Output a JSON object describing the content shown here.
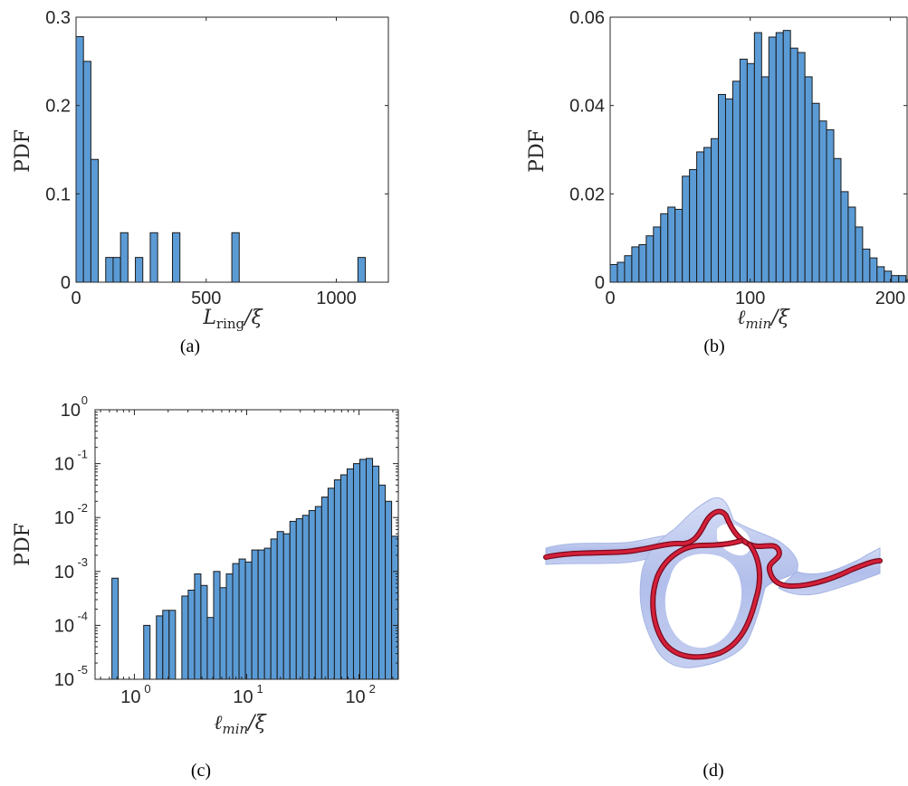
{
  "chart_data": [
    {
      "type": "bar",
      "panel": "(a)",
      "ylabel": "PDF",
      "xlabel_parts": {
        "main": "L",
        "sub": "ring",
        "rest": "/ξ"
      },
      "xlim": [
        0,
        1200
      ],
      "ylim": [
        0,
        0.3
      ],
      "xticks": [
        "0",
        "500",
        "1000"
      ],
      "xtick_values": [
        0,
        500,
        1000
      ],
      "yticks": [
        "0",
        "0.1",
        "0.2",
        "0.3"
      ],
      "ytick_values": [
        0,
        0.1,
        0.2,
        0.3
      ],
      "bin_edges_start": 0,
      "bin_width": 28.5,
      "values": [
        0.278,
        0.25,
        0.139,
        0.0,
        0.028,
        0.028,
        0.056,
        0.0,
        0.028,
        0.0,
        0.056,
        0.0,
        0.0,
        0.056,
        0.0,
        0.0,
        0.0,
        0.0,
        0.0,
        0.0,
        0.0,
        0.056,
        0.0,
        0.0,
        0.0,
        0.0,
        0.0,
        0.0,
        0.0,
        0.0,
        0.0,
        0.0,
        0.0,
        0.0,
        0.0,
        0.0,
        0.0,
        0.0,
        0.028
      ],
      "caption": "(a)"
    },
    {
      "type": "bar",
      "panel": "(b)",
      "ylabel": "PDF",
      "xlabel_parts": {
        "main": "ℓ",
        "sub": "min",
        "rest": "/ξ"
      },
      "xlim": [
        0,
        212
      ],
      "ylim": [
        0,
        0.06
      ],
      "xticks": [
        "0",
        "100",
        "200"
      ],
      "xtick_values": [
        0,
        100,
        200
      ],
      "yticks": [
        "0",
        "0.02",
        "0.04",
        "0.06"
      ],
      "ytick_values": [
        0,
        0.02,
        0.04,
        0.06
      ],
      "bin_edges_start": 0,
      "bin_width": 5.15,
      "values": [
        0.004,
        0.0045,
        0.006,
        0.008,
        0.0085,
        0.0105,
        0.0125,
        0.0155,
        0.017,
        0.0165,
        0.024,
        0.0255,
        0.0295,
        0.0305,
        0.0325,
        0.0425,
        0.0415,
        0.0455,
        0.0505,
        0.0495,
        0.0565,
        0.0465,
        0.0555,
        0.0565,
        0.057,
        0.053,
        0.052,
        0.0465,
        0.0405,
        0.0365,
        0.0345,
        0.028,
        0.0205,
        0.017,
        0.0125,
        0.0075,
        0.0055,
        0.0035,
        0.0025,
        0.0015,
        0.0015,
        0.0005
      ],
      "caption": "(b)"
    },
    {
      "type": "bar",
      "scale": "log-log",
      "panel": "(c)",
      "ylabel": "PDF",
      "xlabel_parts": {
        "main": "ℓ",
        "sub": "min",
        "rest": "/ξ"
      },
      "xlim_log10": [
        -0.35,
        2.35
      ],
      "ylim_log10": [
        -5,
        0
      ],
      "xticks": [
        {
          "base": "10",
          "exp": "0"
        },
        {
          "base": "10",
          "exp": "1"
        },
        {
          "base": "10",
          "exp": "2"
        }
      ],
      "xtick_log10": [
        0,
        1,
        2
      ],
      "yticks": [
        {
          "base": "10",
          "exp": "0"
        },
        {
          "base": "10",
          "exp": "-1"
        },
        {
          "base": "10",
          "exp": "-2"
        },
        {
          "base": "10",
          "exp": "-3"
        },
        {
          "base": "10",
          "exp": "-4"
        },
        {
          "base": "10",
          "exp": "-5"
        }
      ],
      "ytick_log10": [
        0,
        -1,
        -2,
        -3,
        -4,
        -5
      ],
      "bin_log_start": -0.2,
      "bin_log_width": 0.0566,
      "values": [
        0.00075,
        0,
        0,
        0,
        0,
        0.0001,
        0,
        0.00015,
        0.00019,
        0.00019,
        0,
        0.00035,
        0.00045,
        0.0009,
        0.00055,
        0.00014,
        0.001,
        0.0005,
        0.0009,
        0.0014,
        0.0017,
        0.0015,
        0.0025,
        0.0025,
        0.0027,
        0.004,
        0.0055,
        0.005,
        0.0085,
        0.0095,
        0.011,
        0.0135,
        0.016,
        0.024,
        0.035,
        0.05,
        0.062,
        0.08,
        0.1,
        0.12,
        0.125,
        0.09,
        0.04,
        0.02,
        0.0045
      ],
      "caption": "(c)"
    }
  ],
  "illustration": {
    "type": "3d-vortex-ring-render",
    "tube_color": "#b8c4ec",
    "line_color": "#c8102e",
    "caption": "(d)"
  }
}
